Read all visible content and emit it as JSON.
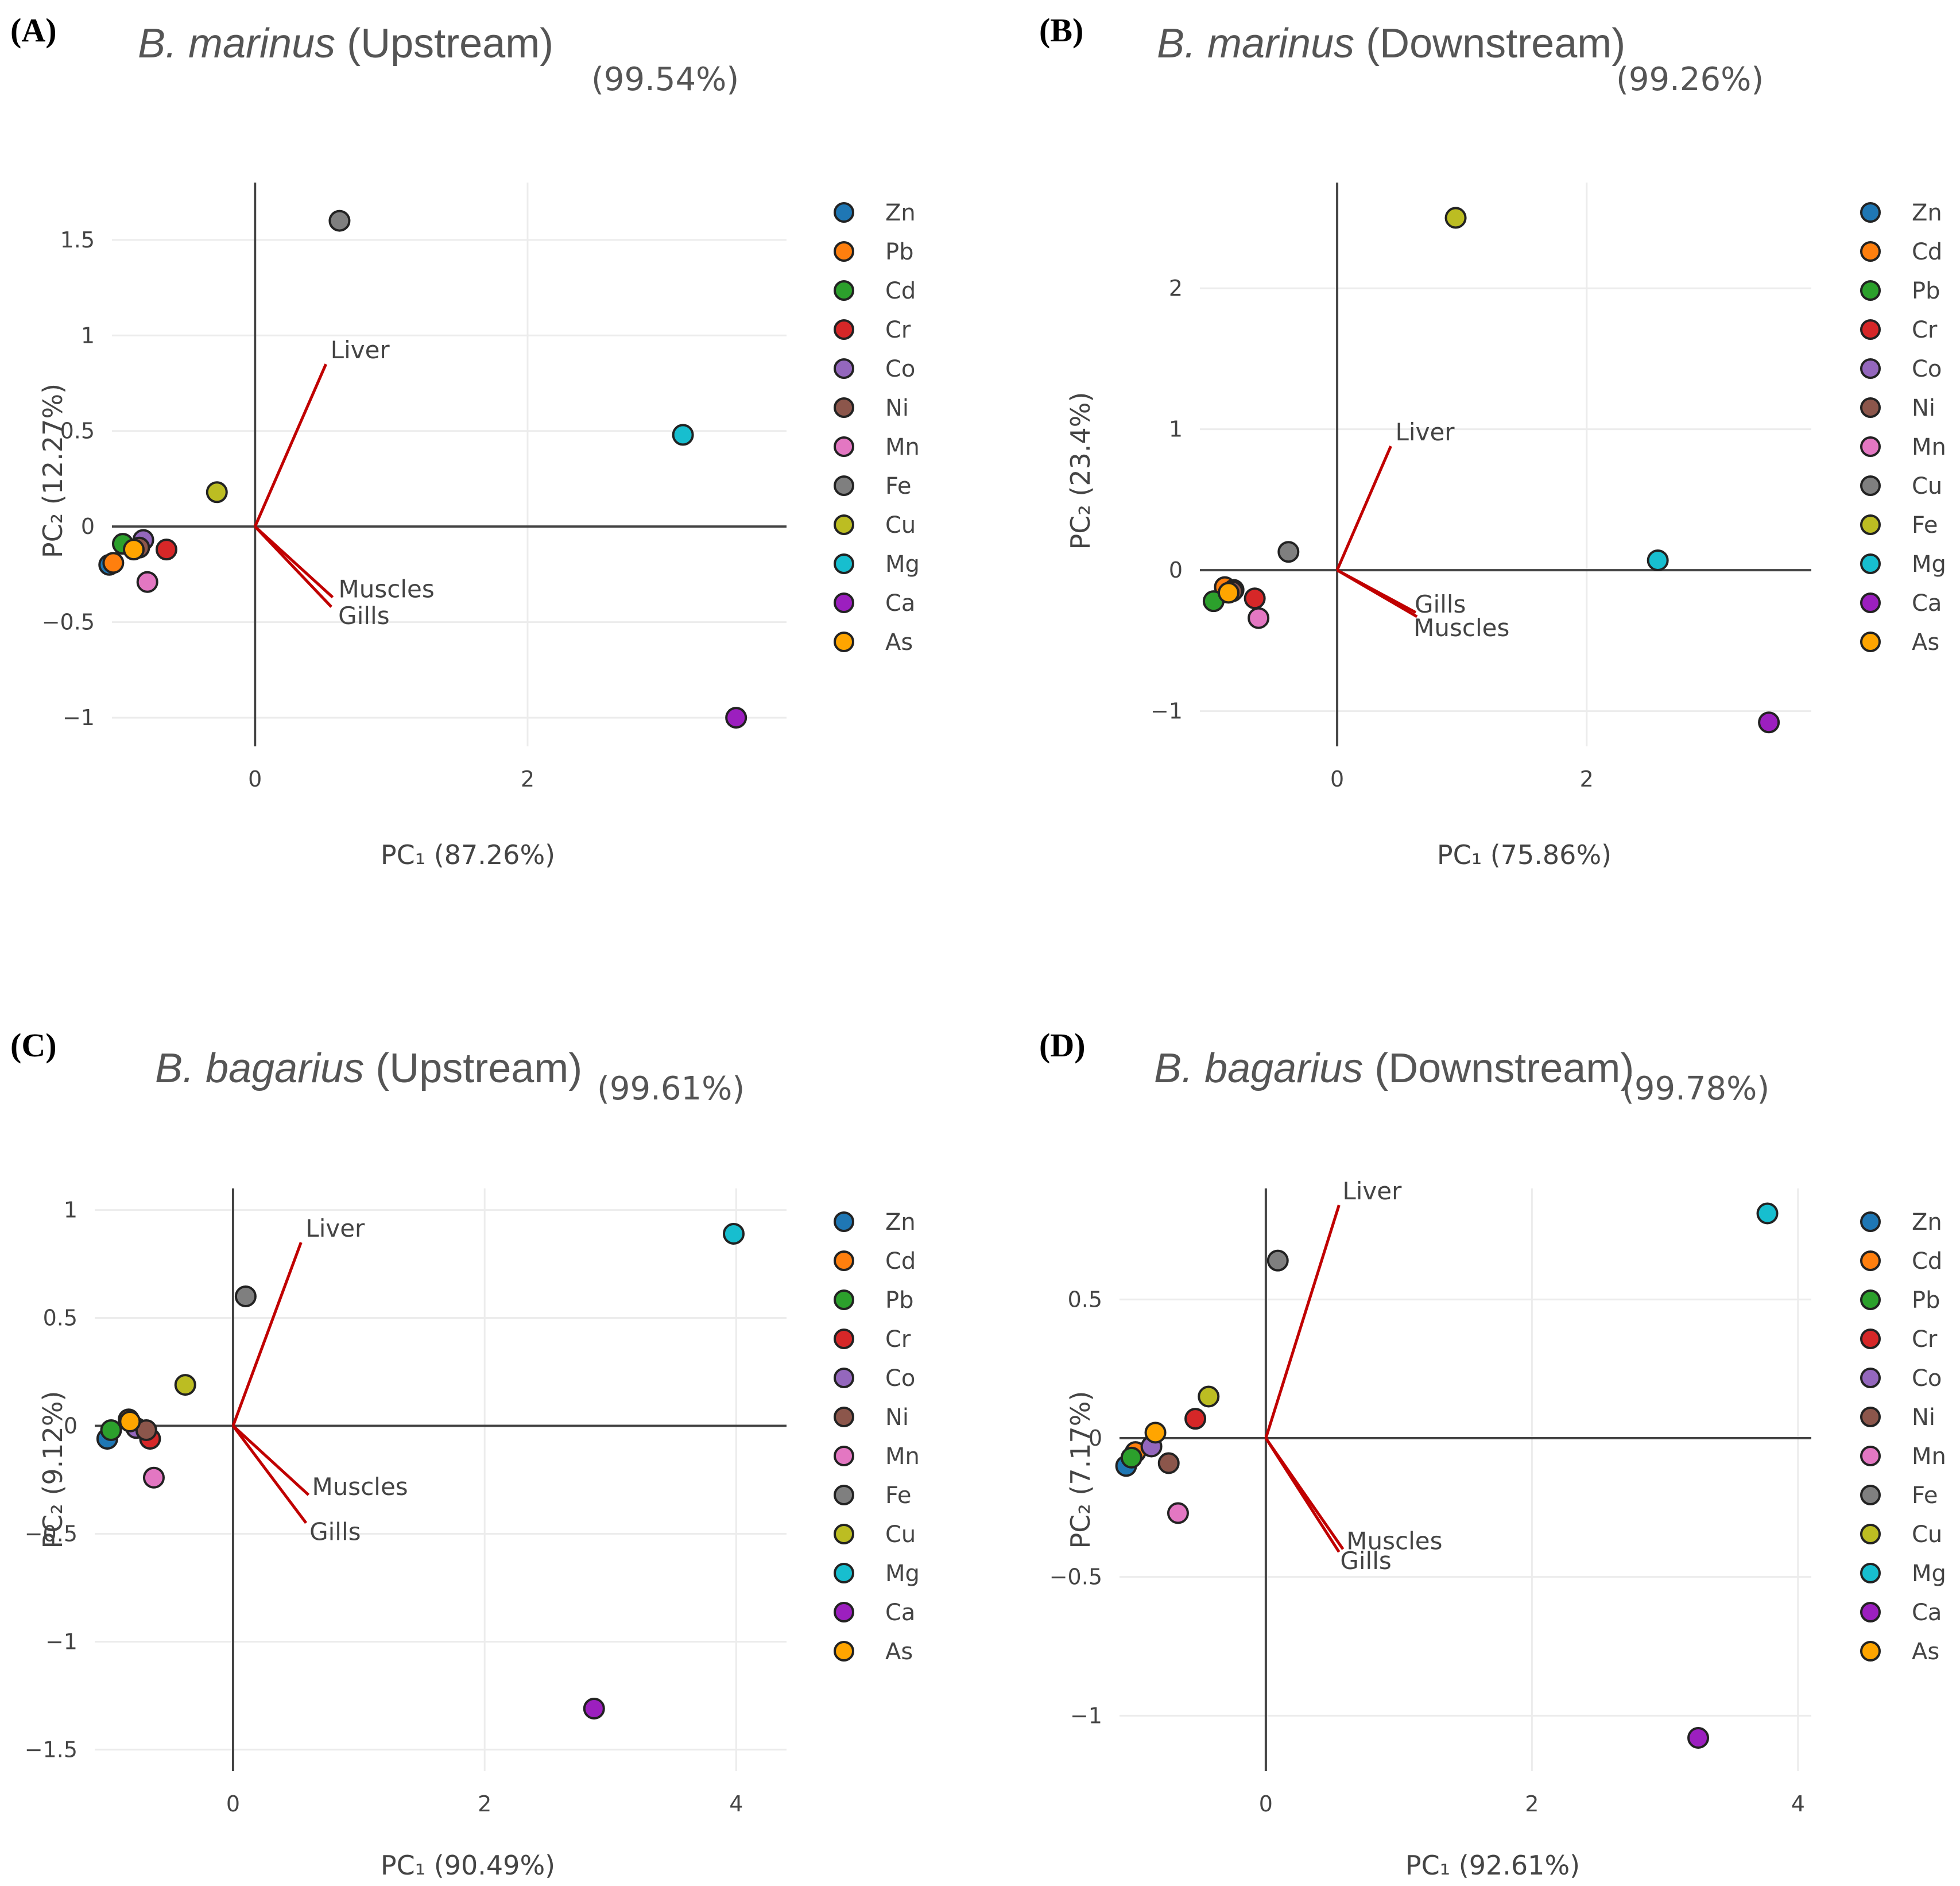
{
  "chart_data": [
    {
      "type": "scatter",
      "panel": "(A)",
      "title": "B. marinus",
      "title_species": "B. marinus",
      "title_site": "(Upstream)",
      "total_variance": "(99.54%)",
      "xlabel": "PC₁ (87.26%)",
      "ylabel": "PC₂ (12.27%)",
      "xlim": [
        -1.05,
        3.9
      ],
      "ylim": [
        -1.15,
        1.8
      ],
      "xticks": [
        0,
        2
      ],
      "yticks": [
        -1,
        -0.5,
        0,
        0.5,
        1,
        1.5
      ],
      "xgrid": [
        2
      ],
      "ygrid": [
        -1,
        -0.5,
        0.5,
        1,
        1.5
      ],
      "points": [
        {
          "label": "Zn",
          "x": -1.07,
          "y": -0.2,
          "color": "#1f77b4"
        },
        {
          "label": "Pb",
          "x": -1.04,
          "y": -0.19,
          "color": "#ff7f0e"
        },
        {
          "label": "Cd",
          "x": -0.97,
          "y": -0.09,
          "color": "#2ca02c"
        },
        {
          "label": "Cr",
          "x": -0.65,
          "y": -0.12,
          "color": "#d62728"
        },
        {
          "label": "Co",
          "x": -0.82,
          "y": -0.07,
          "color": "#9467bd"
        },
        {
          "label": "Ni",
          "x": -0.85,
          "y": -0.11,
          "color": "#8c564b"
        },
        {
          "label": "Mn",
          "x": -0.79,
          "y": -0.29,
          "color": "#e377c2"
        },
        {
          "label": "Fe",
          "x": 0.62,
          "y": 1.6,
          "color": "#7f7f7f"
        },
        {
          "label": "Cu",
          "x": -0.28,
          "y": 0.18,
          "color": "#bcbd22"
        },
        {
          "label": "Mg",
          "x": 3.14,
          "y": 0.48,
          "color": "#17becf"
        },
        {
          "label": "Ca",
          "x": 3.53,
          "y": -1.0,
          "color": "#9c1fbf"
        },
        {
          "label": "As",
          "x": -0.89,
          "y": -0.12,
          "color": "#ffa500"
        }
      ],
      "loadings": [
        {
          "label": "Liver",
          "x": 0.52,
          "y": 0.85
        },
        {
          "label": "Muscles",
          "x": 0.57,
          "y": -0.37
        },
        {
          "label": "Gills",
          "x": 0.56,
          "y": -0.42
        }
      ],
      "legend": [
        "Zn",
        "Pb",
        "Cd",
        "Cr",
        "Co",
        "Ni",
        "Mn",
        "Fe",
        "Cu",
        "Mg",
        "Ca",
        "As"
      ]
    },
    {
      "type": "scatter",
      "panel": "(B)",
      "title": "B. marinus",
      "title_species": "B. marinus",
      "title_site": "(Downstream)",
      "total_variance": "(99.26%)",
      "xlabel": "PC₁ (75.86%)",
      "ylabel": "PC₂ (23.4%)",
      "xlim": [
        -1.1,
        3.8
      ],
      "ylim": [
        -1.25,
        2.75
      ],
      "xticks": [
        0,
        2
      ],
      "yticks": [
        -1,
        0,
        1,
        2
      ],
      "xgrid": [
        2
      ],
      "ygrid": [
        -1,
        1,
        2
      ],
      "points": [
        {
          "label": "Zn",
          "x": -0.87,
          "y": -0.14,
          "color": "#1f77b4"
        },
        {
          "label": "Cd",
          "x": -0.9,
          "y": -0.12,
          "color": "#ff7f0e"
        },
        {
          "label": "Pb",
          "x": -0.99,
          "y": -0.22,
          "color": "#2ca02c"
        },
        {
          "label": "Cr",
          "x": -0.66,
          "y": -0.2,
          "color": "#d62728"
        },
        {
          "label": "Co",
          "x": -0.83,
          "y": -0.14,
          "color": "#9467bd"
        },
        {
          "label": "Ni",
          "x": -0.84,
          "y": -0.15,
          "color": "#8c564b"
        },
        {
          "label": "Mn",
          "x": -0.63,
          "y": -0.34,
          "color": "#e377c2"
        },
        {
          "label": "Cu",
          "x": -0.39,
          "y": 0.13,
          "color": "#7f7f7f"
        },
        {
          "label": "Fe",
          "x": 0.95,
          "y": 2.5,
          "color": "#bcbd22"
        },
        {
          "label": "Mg",
          "x": 2.57,
          "y": 0.07,
          "color": "#17becf"
        },
        {
          "label": "Ca",
          "x": 3.46,
          "y": -1.08,
          "color": "#9c1fbf"
        },
        {
          "label": "As",
          "x": -0.87,
          "y": -0.16,
          "color": "#ffa500"
        }
      ],
      "loadings": [
        {
          "label": "Liver",
          "x": 0.43,
          "y": 0.88
        },
        {
          "label": "Gills",
          "x": 0.63,
          "y": -0.3
        },
        {
          "label": "Muscles",
          "x": 0.64,
          "y": -0.33
        }
      ],
      "legend": [
        "Zn",
        "Cd",
        "Pb",
        "Cr",
        "Co",
        "Ni",
        "Mn",
        "Cu",
        "Fe",
        "Mg",
        "Ca",
        "As"
      ]
    },
    {
      "type": "scatter",
      "panel": "(C)",
      "title": "B. bagarius",
      "title_species": "B. bagarius",
      "title_site": "(Upstream)",
      "total_variance": "(99.61%)",
      "xlabel": "PC₁ (90.49%)",
      "ylabel": "PC₂ (9.12%)",
      "xlim": [
        -1.1,
        4.4
      ],
      "ylim": [
        -1.6,
        1.1
      ],
      "xticks": [
        0,
        2,
        4
      ],
      "yticks": [
        -1.5,
        -1,
        -0.5,
        0,
        0.5,
        1
      ],
      "xgrid": [
        2,
        4
      ],
      "ygrid": [
        -1.5,
        -1,
        -0.5,
        0.5,
        1
      ],
      "points": [
        {
          "label": "Zn",
          "x": -1.0,
          "y": -0.06,
          "color": "#1f77b4"
        },
        {
          "label": "Cd",
          "x": -0.83,
          "y": 0.03,
          "color": "#ff7f0e"
        },
        {
          "label": "Pb",
          "x": -0.97,
          "y": -0.02,
          "color": "#2ca02c"
        },
        {
          "label": "Cr",
          "x": -0.66,
          "y": -0.06,
          "color": "#d62728"
        },
        {
          "label": "Co",
          "x": -0.77,
          "y": -0.01,
          "color": "#9467bd"
        },
        {
          "label": "Ni",
          "x": -0.69,
          "y": -0.02,
          "color": "#8c564b"
        },
        {
          "label": "Mn",
          "x": -0.63,
          "y": -0.24,
          "color": "#e377c2"
        },
        {
          "label": "Fe",
          "x": 0.1,
          "y": 0.6,
          "color": "#7f7f7f"
        },
        {
          "label": "Cu",
          "x": -0.38,
          "y": 0.19,
          "color": "#bcbd22"
        },
        {
          "label": "Mg",
          "x": 3.98,
          "y": 0.89,
          "color": "#17becf"
        },
        {
          "label": "Ca",
          "x": 2.87,
          "y": -1.31,
          "color": "#9c1fbf"
        },
        {
          "label": "As",
          "x": -0.82,
          "y": 0.02,
          "color": "#ffa500"
        }
      ],
      "loadings": [
        {
          "label": "Liver",
          "x": 0.54,
          "y": 0.85
        },
        {
          "label": "Muscles",
          "x": 0.6,
          "y": -0.32
        },
        {
          "label": "Gills",
          "x": 0.58,
          "y": -0.45
        }
      ],
      "legend": [
        "Zn",
        "Cd",
        "Pb",
        "Cr",
        "Co",
        "Ni",
        "Mn",
        "Fe",
        "Cu",
        "Mg",
        "Ca",
        "As"
      ]
    },
    {
      "type": "scatter",
      "panel": "(D)",
      "title": "B. bagarius",
      "title_species": "B. bagarius",
      "title_site": "(Downstream)",
      "total_variance": "(99.78%)",
      "xlabel": "PC₁ (92.61%)",
      "ylabel": "PC₂ (7.17%)",
      "xlim": [
        -1.1,
        4.1
      ],
      "ylim": [
        -1.2,
        0.9
      ],
      "xticks": [
        0,
        2,
        4
      ],
      "yticks": [
        -1,
        -0.5,
        0,
        0.5
      ],
      "xgrid": [
        2,
        4
      ],
      "ygrid": [
        -1,
        -0.5,
        0.5
      ],
      "points": [
        {
          "label": "Zn",
          "x": -1.05,
          "y": -0.1,
          "color": "#1f77b4"
        },
        {
          "label": "Cd",
          "x": -0.98,
          "y": -0.05,
          "color": "#ff7f0e"
        },
        {
          "label": "Pb",
          "x": -1.01,
          "y": -0.07,
          "color": "#2ca02c"
        },
        {
          "label": "Cr",
          "x": -0.53,
          "y": 0.07,
          "color": "#d62728"
        },
        {
          "label": "Co",
          "x": -0.86,
          "y": -0.03,
          "color": "#9467bd"
        },
        {
          "label": "Ni",
          "x": -0.73,
          "y": -0.09,
          "color": "#8c564b"
        },
        {
          "label": "Mn",
          "x": -0.66,
          "y": -0.27,
          "color": "#e377c2"
        },
        {
          "label": "Fe",
          "x": 0.09,
          "y": 0.64,
          "color": "#7f7f7f"
        },
        {
          "label": "Cu",
          "x": -0.43,
          "y": 0.15,
          "color": "#bcbd22"
        },
        {
          "label": "Mg",
          "x": 3.77,
          "y": 0.81,
          "color": "#17becf"
        },
        {
          "label": "Ca",
          "x": 3.25,
          "y": -1.08,
          "color": "#9c1fbf"
        },
        {
          "label": "As",
          "x": -0.83,
          "y": 0.02,
          "color": "#ffa500"
        }
      ],
      "loadings": [
        {
          "label": "Liver",
          "x": 0.55,
          "y": 0.84
        },
        {
          "label": "Muscles",
          "x": 0.58,
          "y": -0.4
        },
        {
          "label": "Gills",
          "x": 0.55,
          "y": -0.41
        }
      ],
      "legend": [
        "Zn",
        "Cd",
        "Pb",
        "Cr",
        "Co",
        "Ni",
        "Mn",
        "Fe",
        "Cu",
        "Mg",
        "Ca",
        "As"
      ]
    }
  ]
}
